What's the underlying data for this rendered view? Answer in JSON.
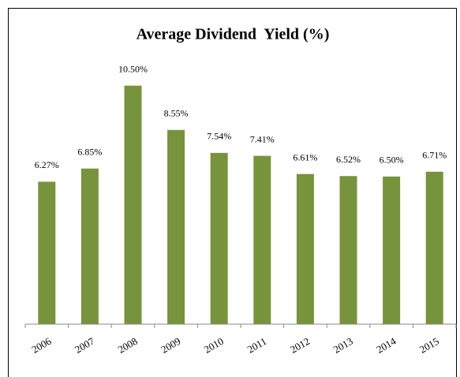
{
  "chart_data": {
    "type": "bar",
    "title": "Average Dividend  Yield (%)",
    "categories": [
      "2006",
      "2007",
      "2008",
      "2009",
      "2010",
      "2011",
      "2012",
      "2013",
      "2014",
      "2015"
    ],
    "values": [
      6.27,
      6.85,
      10.5,
      8.55,
      7.54,
      7.41,
      6.61,
      6.52,
      6.5,
      6.71
    ],
    "value_labels": [
      "6.27%",
      "6.85%",
      "10.50%",
      "8.55%",
      "7.54%",
      "7.41%",
      "6.61%",
      "6.52%",
      "6.50%",
      "6.71%"
    ],
    "color": "#77933c",
    "ylim": [
      0,
      12
    ]
  }
}
